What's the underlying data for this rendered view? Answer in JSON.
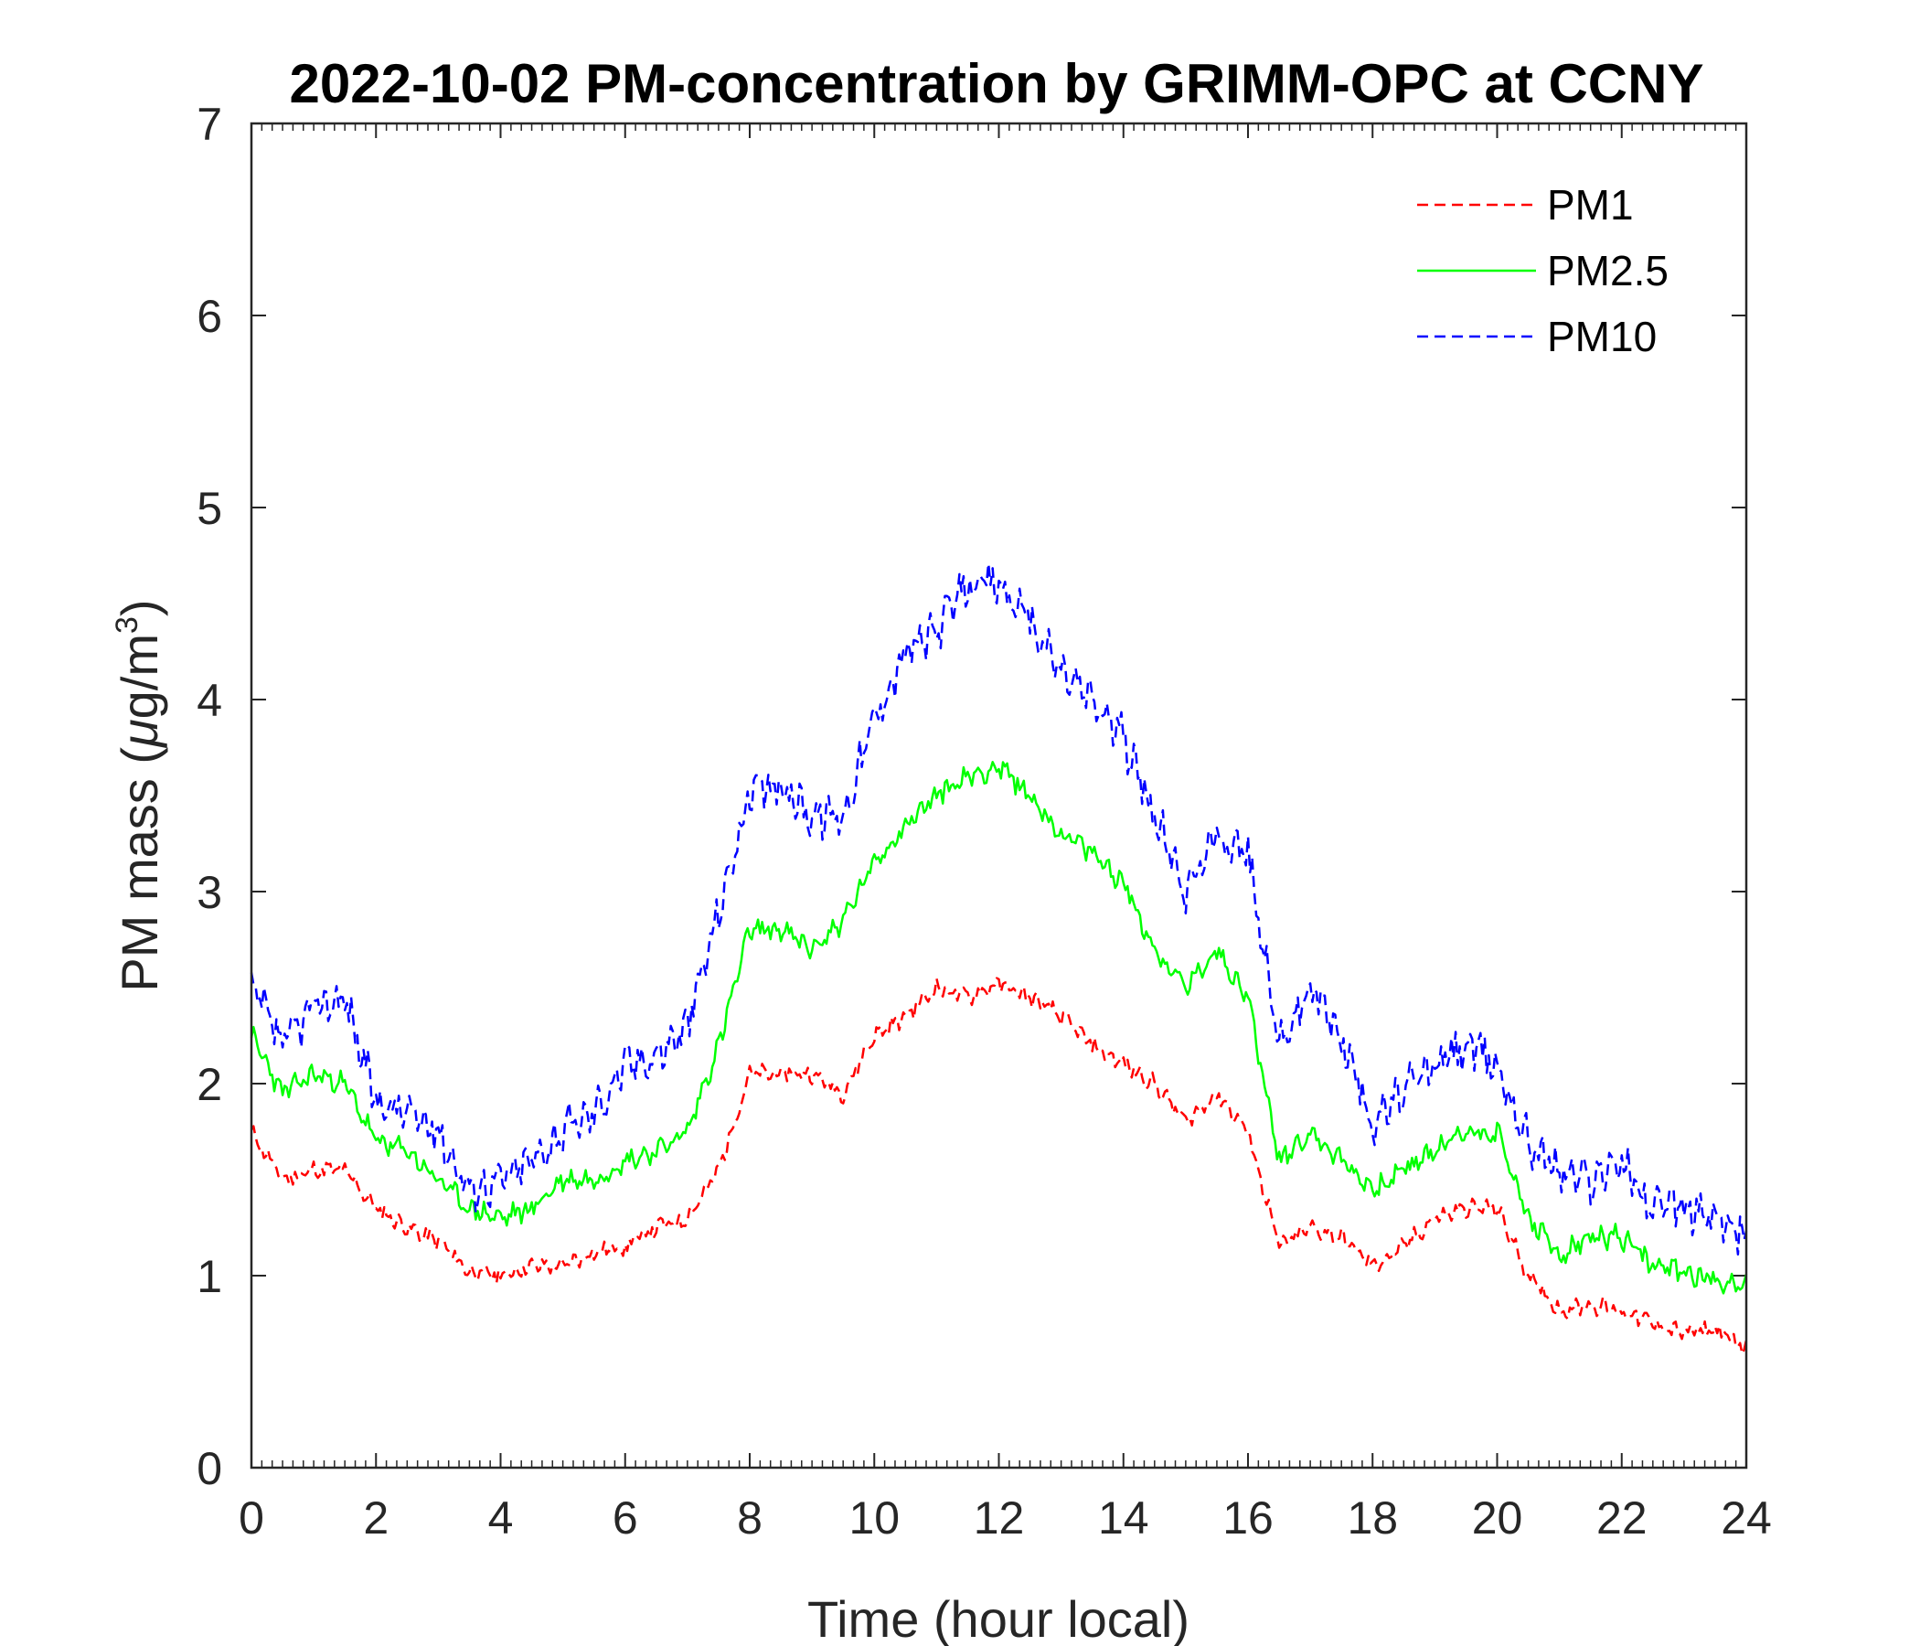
{
  "chart_data": {
    "type": "line",
    "title": "2022-10-02 PM-concentration by GRIMM-OPC at CCNY",
    "xlabel": "Time (hour local)",
    "ylabel": "PM mass (μg/m³)",
    "ylabel_parts": {
      "prefix": "PM mass (",
      "mu": "μ",
      "unit": "g/m",
      "sup": "3",
      "suffix": ")"
    },
    "xlim": [
      0,
      24
    ],
    "ylim": [
      0,
      7
    ],
    "xticks": [
      0,
      2,
      4,
      6,
      8,
      10,
      12,
      14,
      16,
      18,
      20,
      22,
      24
    ],
    "yticks": [
      0,
      1,
      2,
      3,
      4,
      5,
      6,
      7
    ],
    "x_tick_labels": [
      "0",
      "2",
      "4",
      "6",
      "8",
      "10",
      "12",
      "14",
      "16",
      "18",
      "20",
      "22",
      "24"
    ],
    "y_tick_labels": [
      "0",
      "1",
      "2",
      "3",
      "4",
      "5",
      "6",
      "7"
    ],
    "grid": false,
    "legend_position": "top-right",
    "x": [
      0,
      0.5,
      1,
      1.5,
      2,
      2.5,
      3,
      3.5,
      4,
      4.5,
      5,
      5.5,
      6,
      6.5,
      7,
      7.5,
      8,
      8.5,
      9,
      9.5,
      10,
      10.5,
      11,
      11.5,
      12,
      12.5,
      13,
      13.5,
      14,
      14.5,
      15,
      15.5,
      16,
      16.5,
      17,
      17.5,
      18,
      18.5,
      19,
      19.5,
      20,
      20.5,
      21,
      21.5,
      22,
      22.5,
      23,
      23.5,
      24
    ],
    "series": [
      {
        "name": "PM1",
        "color": "#ff0000",
        "dash": "dashed",
        "values": [
          1.75,
          1.5,
          1.55,
          1.55,
          1.35,
          1.25,
          1.18,
          1.02,
          1.0,
          1.05,
          1.05,
          1.12,
          1.15,
          1.25,
          1.3,
          1.55,
          2.05,
          2.05,
          2.05,
          1.95,
          2.25,
          2.35,
          2.5,
          2.45,
          2.52,
          2.45,
          2.35,
          2.2,
          2.1,
          2.0,
          1.8,
          1.95,
          1.75,
          1.15,
          1.25,
          1.2,
          1.05,
          1.15,
          1.3,
          1.35,
          1.35,
          1.0,
          0.82,
          0.85,
          0.82,
          0.75,
          0.7,
          0.72,
          0.62
        ]
      },
      {
        "name": "PM2.5",
        "color": "#00ff00",
        "dash": "solid",
        "values": [
          2.25,
          1.95,
          2.05,
          2.0,
          1.7,
          1.65,
          1.5,
          1.35,
          1.3,
          1.35,
          1.5,
          1.5,
          1.6,
          1.65,
          1.75,
          2.2,
          2.8,
          2.8,
          2.7,
          2.85,
          3.15,
          3.35,
          3.5,
          3.6,
          3.65,
          3.5,
          3.3,
          3.2,
          3.05,
          2.7,
          2.5,
          2.7,
          2.45,
          1.6,
          1.75,
          1.6,
          1.45,
          1.55,
          1.65,
          1.75,
          1.75,
          1.3,
          1.1,
          1.2,
          1.2,
          1.05,
          1.02,
          0.98,
          0.95
        ]
      },
      {
        "name": "PM10",
        "color": "#0000ff",
        "dash": "dashed",
        "values": [
          2.5,
          2.2,
          2.4,
          2.45,
          1.9,
          1.85,
          1.75,
          1.45,
          1.5,
          1.6,
          1.75,
          1.85,
          2.1,
          2.15,
          2.3,
          2.9,
          3.5,
          3.55,
          3.4,
          3.4,
          3.9,
          4.25,
          4.35,
          4.6,
          4.6,
          4.4,
          4.15,
          4.0,
          3.8,
          3.4,
          3.0,
          3.3,
          3.2,
          2.2,
          2.5,
          2.25,
          1.8,
          1.95,
          2.1,
          2.2,
          2.1,
          1.7,
          1.55,
          1.5,
          1.6,
          1.35,
          1.35,
          1.3,
          1.2
        ]
      }
    ]
  }
}
